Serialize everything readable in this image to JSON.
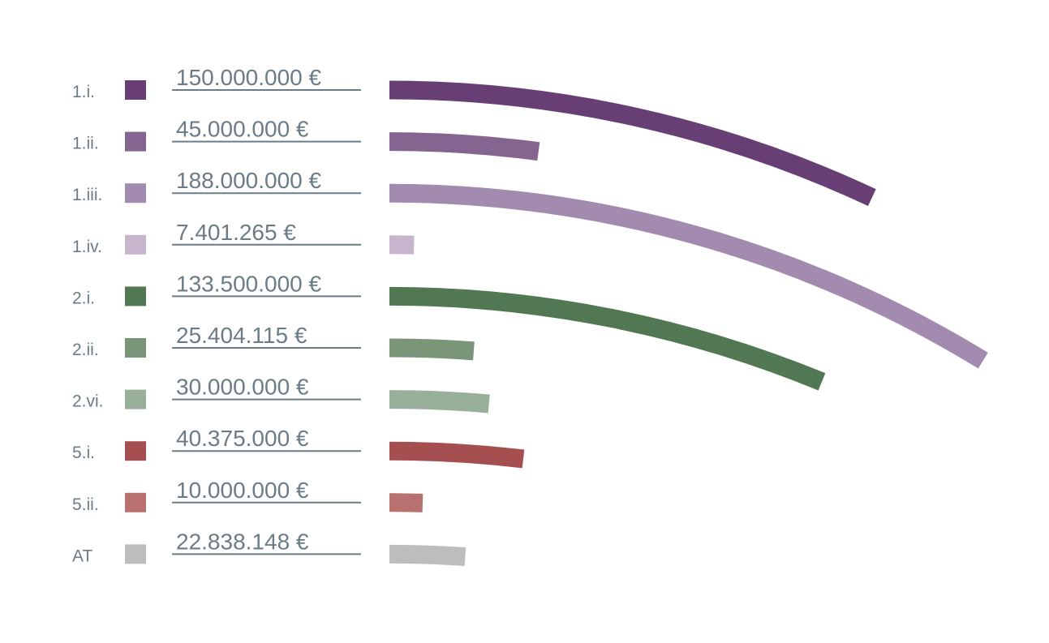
{
  "chart_data": {
    "type": "bar",
    "categories": [
      "1.i.",
      "1.ii.",
      "1.iii.",
      "1.iv.",
      "2.i.",
      "2.ii.",
      "2.vi.",
      "5.i.",
      "5.ii.",
      "AT"
    ],
    "values": [
      150000000,
      45000000,
      188000000,
      7401265,
      133500000,
      25404115,
      30000000,
      40375000,
      10000000,
      22838148
    ],
    "value_labels": [
      "150.000.000 €",
      "45.000.000 €",
      "188.000.000 €",
      "7.401.265 €",
      "133.500.000 €",
      "25.404.115 €",
      "30.000.000 €",
      "40.375.000 €",
      "10.000.000 €",
      "22.838.148 €"
    ],
    "colors": [
      "#673f75",
      "#84658f",
      "#a38baf",
      "#c7b5cd",
      "#517852",
      "#7b9579",
      "#98b099",
      "#a64f50",
      "#b8716f",
      "#bdbdbd"
    ],
    "title": "",
    "xlabel": "",
    "ylabel": "",
    "legend": "left"
  }
}
